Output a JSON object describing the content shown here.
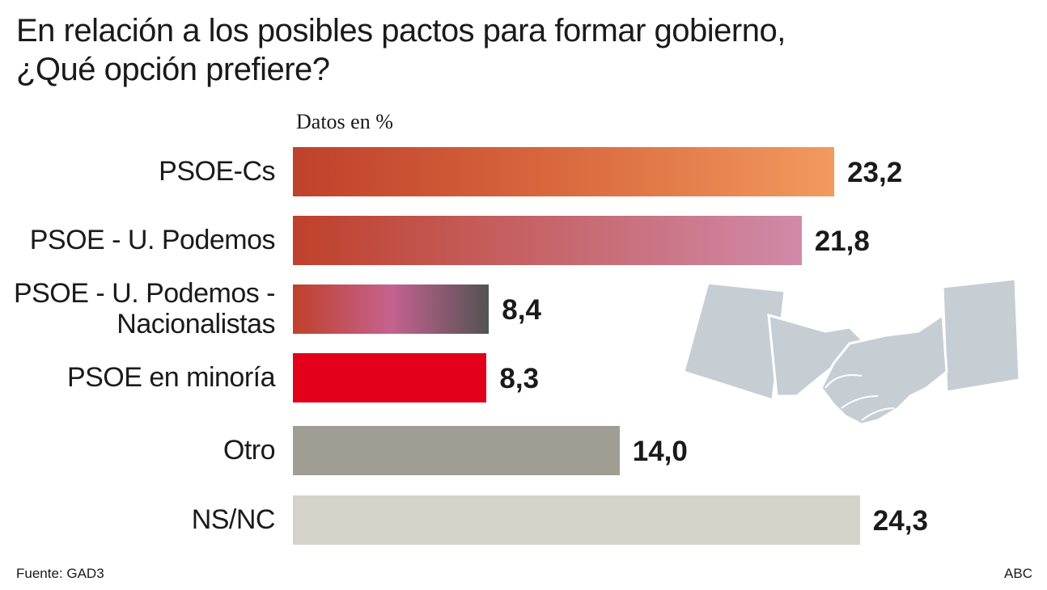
{
  "chart_data": {
    "type": "bar",
    "title": "En relación a los posibles pactos para formar gobierno,\n¿Qué opción prefiere?",
    "subtitle": "Datos en %",
    "categories": [
      "PSOE-Cs",
      "PSOE - U. Podemos",
      "PSOE - U. Podemos -\nNacionalistas",
      "PSOE en minoría",
      "Otro",
      "NS/NC"
    ],
    "values": [
      23.2,
      21.8,
      8.4,
      8.3,
      14.0,
      24.3
    ],
    "value_labels": [
      "23,2",
      "21,8",
      "8,4",
      "8,3",
      "14,0",
      "24,3"
    ],
    "colors": [
      [
        "#bf412b",
        "#d9693e",
        "#f29a5f"
      ],
      [
        "#bf412b",
        "#c6656a",
        "#d08aa9"
      ],
      [
        "#bf412b",
        "#c5628f",
        "#535353"
      ],
      [
        "#e2001a",
        "#e2001a"
      ],
      [
        "#a09d92",
        "#a09d92"
      ],
      [
        "#d4d3ca",
        "#d4d3ca"
      ]
    ],
    "source": "Fuente: GAD3",
    "credit": "ABC"
  }
}
